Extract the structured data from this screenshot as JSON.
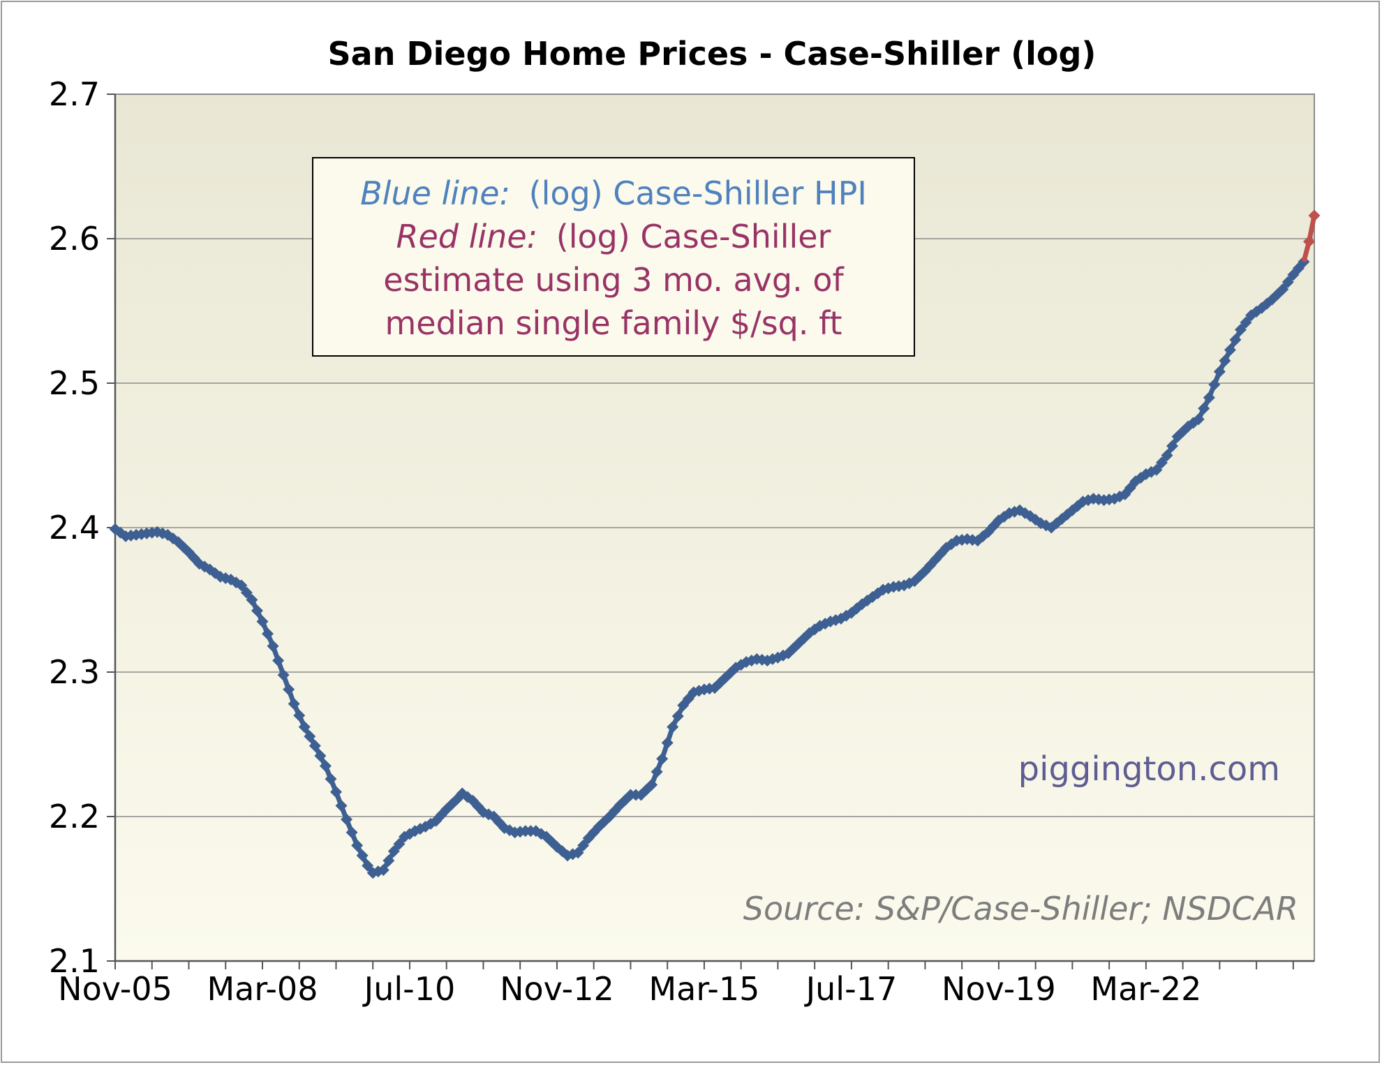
{
  "chart_data": {
    "type": "line",
    "title": "San Diego Home Prices - Case-Shiller (log)",
    "xlabel": "",
    "ylabel": "",
    "ylim": [
      2.1,
      2.7
    ],
    "yticks": [
      "2.1",
      "2.2",
      "2.3",
      "2.4",
      "2.5",
      "2.6",
      "2.7"
    ],
    "ytick_values": [
      2.1,
      2.2,
      2.3,
      2.4,
      2.5,
      2.6,
      2.7
    ],
    "xticks": [
      "Nov-05",
      "Mar-08",
      "Jul-10",
      "Nov-12",
      "Mar-15",
      "Jul-17",
      "Nov-19",
      "Mar-22"
    ],
    "xtick_positions": [
      0,
      28,
      56,
      84,
      112,
      140,
      168,
      196
    ],
    "x_axis": "months since Nov-05",
    "grid": true,
    "legend": {
      "line1_label": "Blue line:",
      "line1_text": "(log) Case-Shiller HPI",
      "line2_label": "Red line:",
      "line2_text": "(log) Case-Shiller",
      "line3_text": "estimate using 3 mo. avg. of",
      "line4_text": "median single family $/sq. ft"
    },
    "watermark": "piggington.com",
    "source": "Source: S&P/Case-Shiller; NSDCAR",
    "colors": {
      "blue": "#3d5f92",
      "red": "#c0504d",
      "plot_bg_top": "#e9e7d4",
      "plot_bg_bottom": "#fbfaed",
      "legend_blue": "#4f81bd",
      "legend_red": "#993366"
    },
    "series": [
      {
        "name": "(log) Case-Shiller HPI",
        "color": "#3d5f92",
        "anchors": [
          [
            0,
            2.399
          ],
          [
            2,
            2.394
          ],
          [
            4,
            2.395
          ],
          [
            6,
            2.396
          ],
          [
            8,
            2.397
          ],
          [
            10,
            2.395
          ],
          [
            12,
            2.39
          ],
          [
            14,
            2.383
          ],
          [
            16,
            2.375
          ],
          [
            18,
            2.371
          ],
          [
            20,
            2.366
          ],
          [
            22,
            2.364
          ],
          [
            24,
            2.36
          ],
          [
            26,
            2.35
          ],
          [
            28,
            2.335
          ],
          [
            30,
            2.318
          ],
          [
            32,
            2.298
          ],
          [
            34,
            2.278
          ],
          [
            36,
            2.262
          ],
          [
            38,
            2.249
          ],
          [
            40,
            2.235
          ],
          [
            42,
            2.217
          ],
          [
            44,
            2.198
          ],
          [
            46,
            2.18
          ],
          [
            48,
            2.166
          ],
          [
            49,
            2.161
          ],
          [
            51,
            2.163
          ],
          [
            53,
            2.176
          ],
          [
            55,
            2.186
          ],
          [
            57,
            2.19
          ],
          [
            59,
            2.193
          ],
          [
            61,
            2.197
          ],
          [
            63,
            2.205
          ],
          [
            65,
            2.212
          ],
          [
            66,
            2.216
          ],
          [
            68,
            2.211
          ],
          [
            70,
            2.203
          ],
          [
            72,
            2.2
          ],
          [
            74,
            2.192
          ],
          [
            76,
            2.189
          ],
          [
            78,
            2.19
          ],
          [
            80,
            2.19
          ],
          [
            82,
            2.186
          ],
          [
            84,
            2.179
          ],
          [
            86,
            2.173
          ],
          [
            88,
            2.175
          ],
          [
            90,
            2.185
          ],
          [
            92,
            2.193
          ],
          [
            94,
            2.2
          ],
          [
            96,
            2.208
          ],
          [
            98,
            2.215
          ],
          [
            100,
            2.215
          ],
          [
            102,
            2.222
          ],
          [
            104,
            2.24
          ],
          [
            106,
            2.262
          ],
          [
            108,
            2.277
          ],
          [
            110,
            2.286
          ],
          [
            112,
            2.288
          ],
          [
            114,
            2.289
          ],
          [
            116,
            2.296
          ],
          [
            118,
            2.303
          ],
          [
            120,
            2.307
          ],
          [
            122,
            2.309
          ],
          [
            124,
            2.308
          ],
          [
            126,
            2.31
          ],
          [
            128,
            2.313
          ],
          [
            130,
            2.32
          ],
          [
            132,
            2.327
          ],
          [
            134,
            2.332
          ],
          [
            136,
            2.335
          ],
          [
            138,
            2.337
          ],
          [
            140,
            2.341
          ],
          [
            142,
            2.347
          ],
          [
            144,
            2.352
          ],
          [
            146,
            2.357
          ],
          [
            148,
            2.359
          ],
          [
            150,
            2.36
          ],
          [
            152,
            2.363
          ],
          [
            154,
            2.37
          ],
          [
            156,
            2.378
          ],
          [
            158,
            2.386
          ],
          [
            160,
            2.391
          ],
          [
            162,
            2.392
          ],
          [
            164,
            2.391
          ],
          [
            166,
            2.397
          ],
          [
            168,
            2.405
          ],
          [
            170,
            2.41
          ],
          [
            172,
            2.412
          ],
          [
            174,
            2.408
          ],
          [
            176,
            2.403
          ],
          [
            178,
            2.4
          ],
          [
            180,
            2.406
          ],
          [
            182,
            2.412
          ],
          [
            184,
            2.418
          ],
          [
            186,
            2.42
          ],
          [
            188,
            2.419
          ],
          [
            190,
            2.42
          ],
          [
            192,
            2.423
          ],
          [
            194,
            2.432
          ],
          [
            196,
            2.437
          ],
          [
            198,
            2.44
          ],
          [
            200,
            2.45
          ],
          [
            202,
            2.463
          ],
          [
            204,
            2.47
          ],
          [
            206,
            2.475
          ],
          [
            208,
            2.49
          ],
          [
            210,
            2.508
          ],
          [
            212,
            2.523
          ],
          [
            214,
            2.537
          ],
          [
            216,
            2.547
          ],
          [
            218,
            2.552
          ],
          [
            220,
            2.558
          ],
          [
            222,
            2.565
          ],
          [
            224,
            2.575
          ],
          [
            226,
            2.584
          ]
        ]
      },
      {
        "name": "(log) Case-Shiller estimate using 3 mo. avg. of median single family $/sq. ft",
        "color": "#c0504d",
        "anchors": [
          [
            226,
            2.584
          ],
          [
            227,
            2.598
          ],
          [
            228,
            2.616
          ]
        ]
      }
    ]
  }
}
